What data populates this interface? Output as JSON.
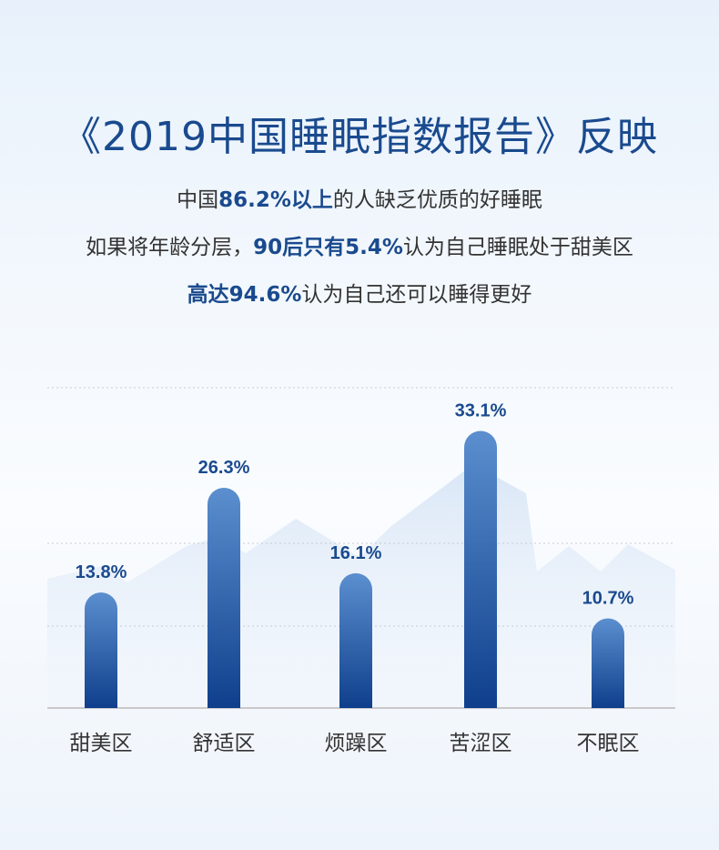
{
  "title": "《2019中国睡眠指数报告》反映",
  "lines": [
    {
      "pre": "中国",
      "bold": "86.2%以上",
      "post": "的人缺乏优质的好睡眠"
    },
    {
      "pre": "如果将年龄分层，",
      "bold": "90后只有5.4%",
      "post": "认为自己睡眠处于甜美区"
    },
    {
      "pre": "",
      "bold": "高达94.6%",
      "post": "认为自己还可以睡得更好"
    }
  ],
  "chart_data": {
    "type": "bar",
    "categories": [
      "甜美区",
      "舒适区",
      "烦躁区",
      "苦涩区",
      "不眠区"
    ],
    "values": [
      13.8,
      26.3,
      16.1,
      33.1,
      10.7
    ],
    "data_labels": [
      "13.8%",
      "26.3%",
      "16.1%",
      "33.1%",
      "10.7%"
    ],
    "ylim": [
      0,
      40
    ],
    "grid": true,
    "bar_color_top": "#5b8fcf",
    "bar_color_bottom": "#0f3f8c",
    "label_color": "#1a4a8e"
  }
}
